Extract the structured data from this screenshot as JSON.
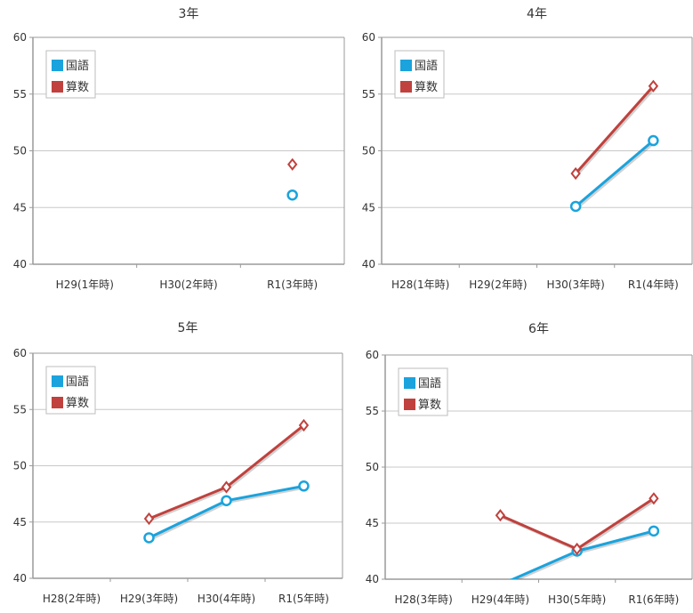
{
  "colors": {
    "kokugo": "#1aa3dd",
    "sansu": "#c0413d",
    "gridline": "#c8c8c8",
    "frame": "#9a9a9a"
  },
  "chart_data": [
    {
      "type": "line",
      "title": "3年",
      "categories": [
        "H29(1年時)",
        "H30(2年時)",
        "R1(3年時)"
      ],
      "ylim": [
        40,
        60
      ],
      "yticks": [
        40,
        45,
        50,
        55,
        60
      ],
      "grid": true,
      "legend_position": "top-left",
      "series": [
        {
          "name": "国語",
          "values": [
            null,
            null,
            46.1
          ],
          "marker": "circle",
          "color": "#1aa3dd"
        },
        {
          "name": "算数",
          "values": [
            null,
            null,
            48.8
          ],
          "marker": "diamond",
          "color": "#c0413d"
        }
      ]
    },
    {
      "type": "line",
      "title": "4年",
      "categories": [
        "H28(1年時)",
        "H29(2年時)",
        "H30(3年時)",
        "R1(4年時)"
      ],
      "ylim": [
        40,
        60
      ],
      "yticks": [
        40,
        45,
        50,
        55,
        60
      ],
      "grid": true,
      "legend_position": "top-left",
      "series": [
        {
          "name": "国語",
          "values": [
            null,
            null,
            45.1,
            50.9
          ],
          "marker": "circle",
          "color": "#1aa3dd"
        },
        {
          "name": "算数",
          "values": [
            null,
            null,
            48.0,
            55.7
          ],
          "marker": "diamond",
          "color": "#c0413d"
        }
      ]
    },
    {
      "type": "line",
      "title": "5年",
      "categories": [
        "H28(2年時)",
        "H29(3年時)",
        "H30(4年時)",
        "R1(5年時)"
      ],
      "ylim": [
        40,
        60
      ],
      "yticks": [
        40,
        45,
        50,
        55,
        60
      ],
      "grid": true,
      "legend_position": "top-left",
      "series": [
        {
          "name": "国語",
          "values": [
            null,
            43.6,
            46.9,
            48.2
          ],
          "marker": "circle",
          "color": "#1aa3dd"
        },
        {
          "name": "算数",
          "values": [
            null,
            45.3,
            48.1,
            53.6
          ],
          "marker": "diamond",
          "color": "#c0413d"
        }
      ]
    },
    {
      "type": "line",
      "title": "6年",
      "categories": [
        "H28(3年時)",
        "H29(4年時)",
        "H30(5年時)",
        "R1(6年時)"
      ],
      "ylim": [
        40,
        60
      ],
      "yticks": [
        40,
        45,
        50,
        55,
        60
      ],
      "grid": true,
      "legend_position": "top-left",
      "series": [
        {
          "name": "国語",
          "values": [
            null,
            39.5,
            42.5,
            44.3
          ],
          "marker": "circle",
          "color": "#1aa3dd"
        },
        {
          "name": "算数",
          "values": [
            null,
            45.7,
            42.7,
            47.2
          ],
          "marker": "diamond",
          "color": "#c0413d"
        }
      ]
    }
  ]
}
